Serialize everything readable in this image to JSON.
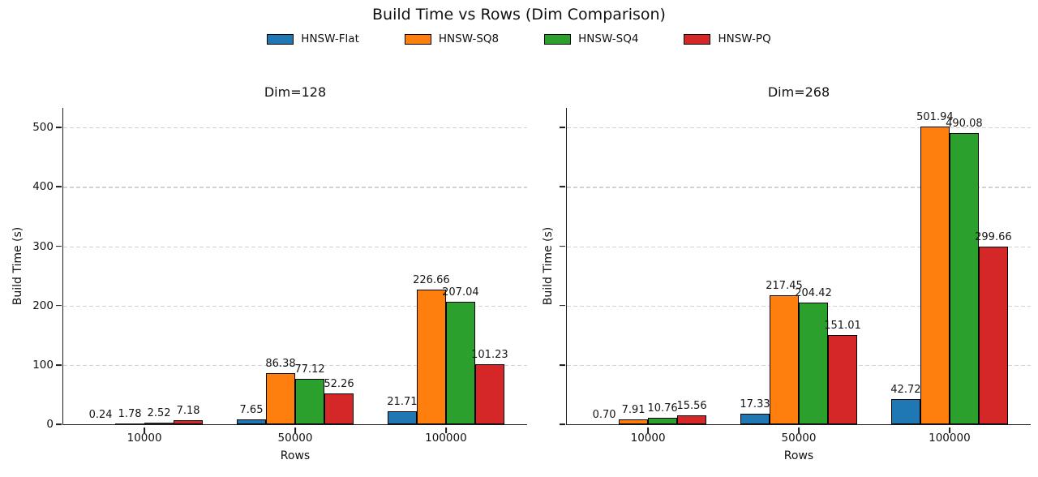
{
  "figure": {
    "title": "Build Time vs Rows (Dim Comparison)",
    "background": "#ffffff",
    "text_color": "#111111",
    "legend": [
      {
        "label": "HNSW-Flat",
        "color": "#1f77b4"
      },
      {
        "label": "HNSW-SQ8",
        "color": "#ff7f0e"
      },
      {
        "label": "HNSW-SQ4",
        "color": "#2ca02c"
      },
      {
        "label": "HNSW-PQ",
        "color": "#d62728"
      }
    ]
  },
  "chart_data": [
    {
      "type": "bar",
      "title": "Dim=128",
      "xlabel": "Rows",
      "ylabel": "Build Time (s)",
      "categories": [
        "10000",
        "50000",
        "100000"
      ],
      "series": [
        {
          "name": "HNSW-Flat",
          "color": "#1f77b4",
          "values": [
            0.24,
            7.65,
            21.71
          ]
        },
        {
          "name": "HNSW-SQ8",
          "color": "#ff7f0e",
          "values": [
            1.78,
            86.38,
            226.66
          ]
        },
        {
          "name": "HNSW-SQ4",
          "color": "#2ca02c",
          "values": [
            2.52,
            77.12,
            207.04
          ]
        },
        {
          "name": "HNSW-PQ",
          "color": "#d62728",
          "values": [
            7.18,
            52.26,
            101.23
          ]
        }
      ],
      "ylim": [
        0,
        533
      ],
      "yticks": [
        0,
        100,
        200,
        300,
        400,
        500
      ],
      "ytick_labels_visible": true,
      "grid": "horizontal-dashed",
      "bar_value_label_format": "2dp"
    },
    {
      "type": "bar",
      "title": "Dim=268",
      "xlabel": "Rows",
      "ylabel": "Build Time (s)",
      "categories": [
        "10000",
        "50000",
        "100000"
      ],
      "series": [
        {
          "name": "HNSW-Flat",
          "color": "#1f77b4",
          "values": [
            0.7,
            17.33,
            42.72
          ]
        },
        {
          "name": "HNSW-SQ8",
          "color": "#ff7f0e",
          "values": [
            7.91,
            217.45,
            501.94
          ]
        },
        {
          "name": "HNSW-SQ4",
          "color": "#2ca02c",
          "values": [
            10.76,
            204.42,
            490.08
          ]
        },
        {
          "name": "HNSW-PQ",
          "color": "#d62728",
          "values": [
            15.56,
            151.01,
            299.66
          ]
        }
      ],
      "ylim": [
        0,
        533
      ],
      "yticks": [
        0,
        100,
        200,
        300,
        400,
        500
      ],
      "ytick_labels_visible": false,
      "grid": "horizontal-dashed",
      "bar_value_label_format": "2dp"
    }
  ]
}
